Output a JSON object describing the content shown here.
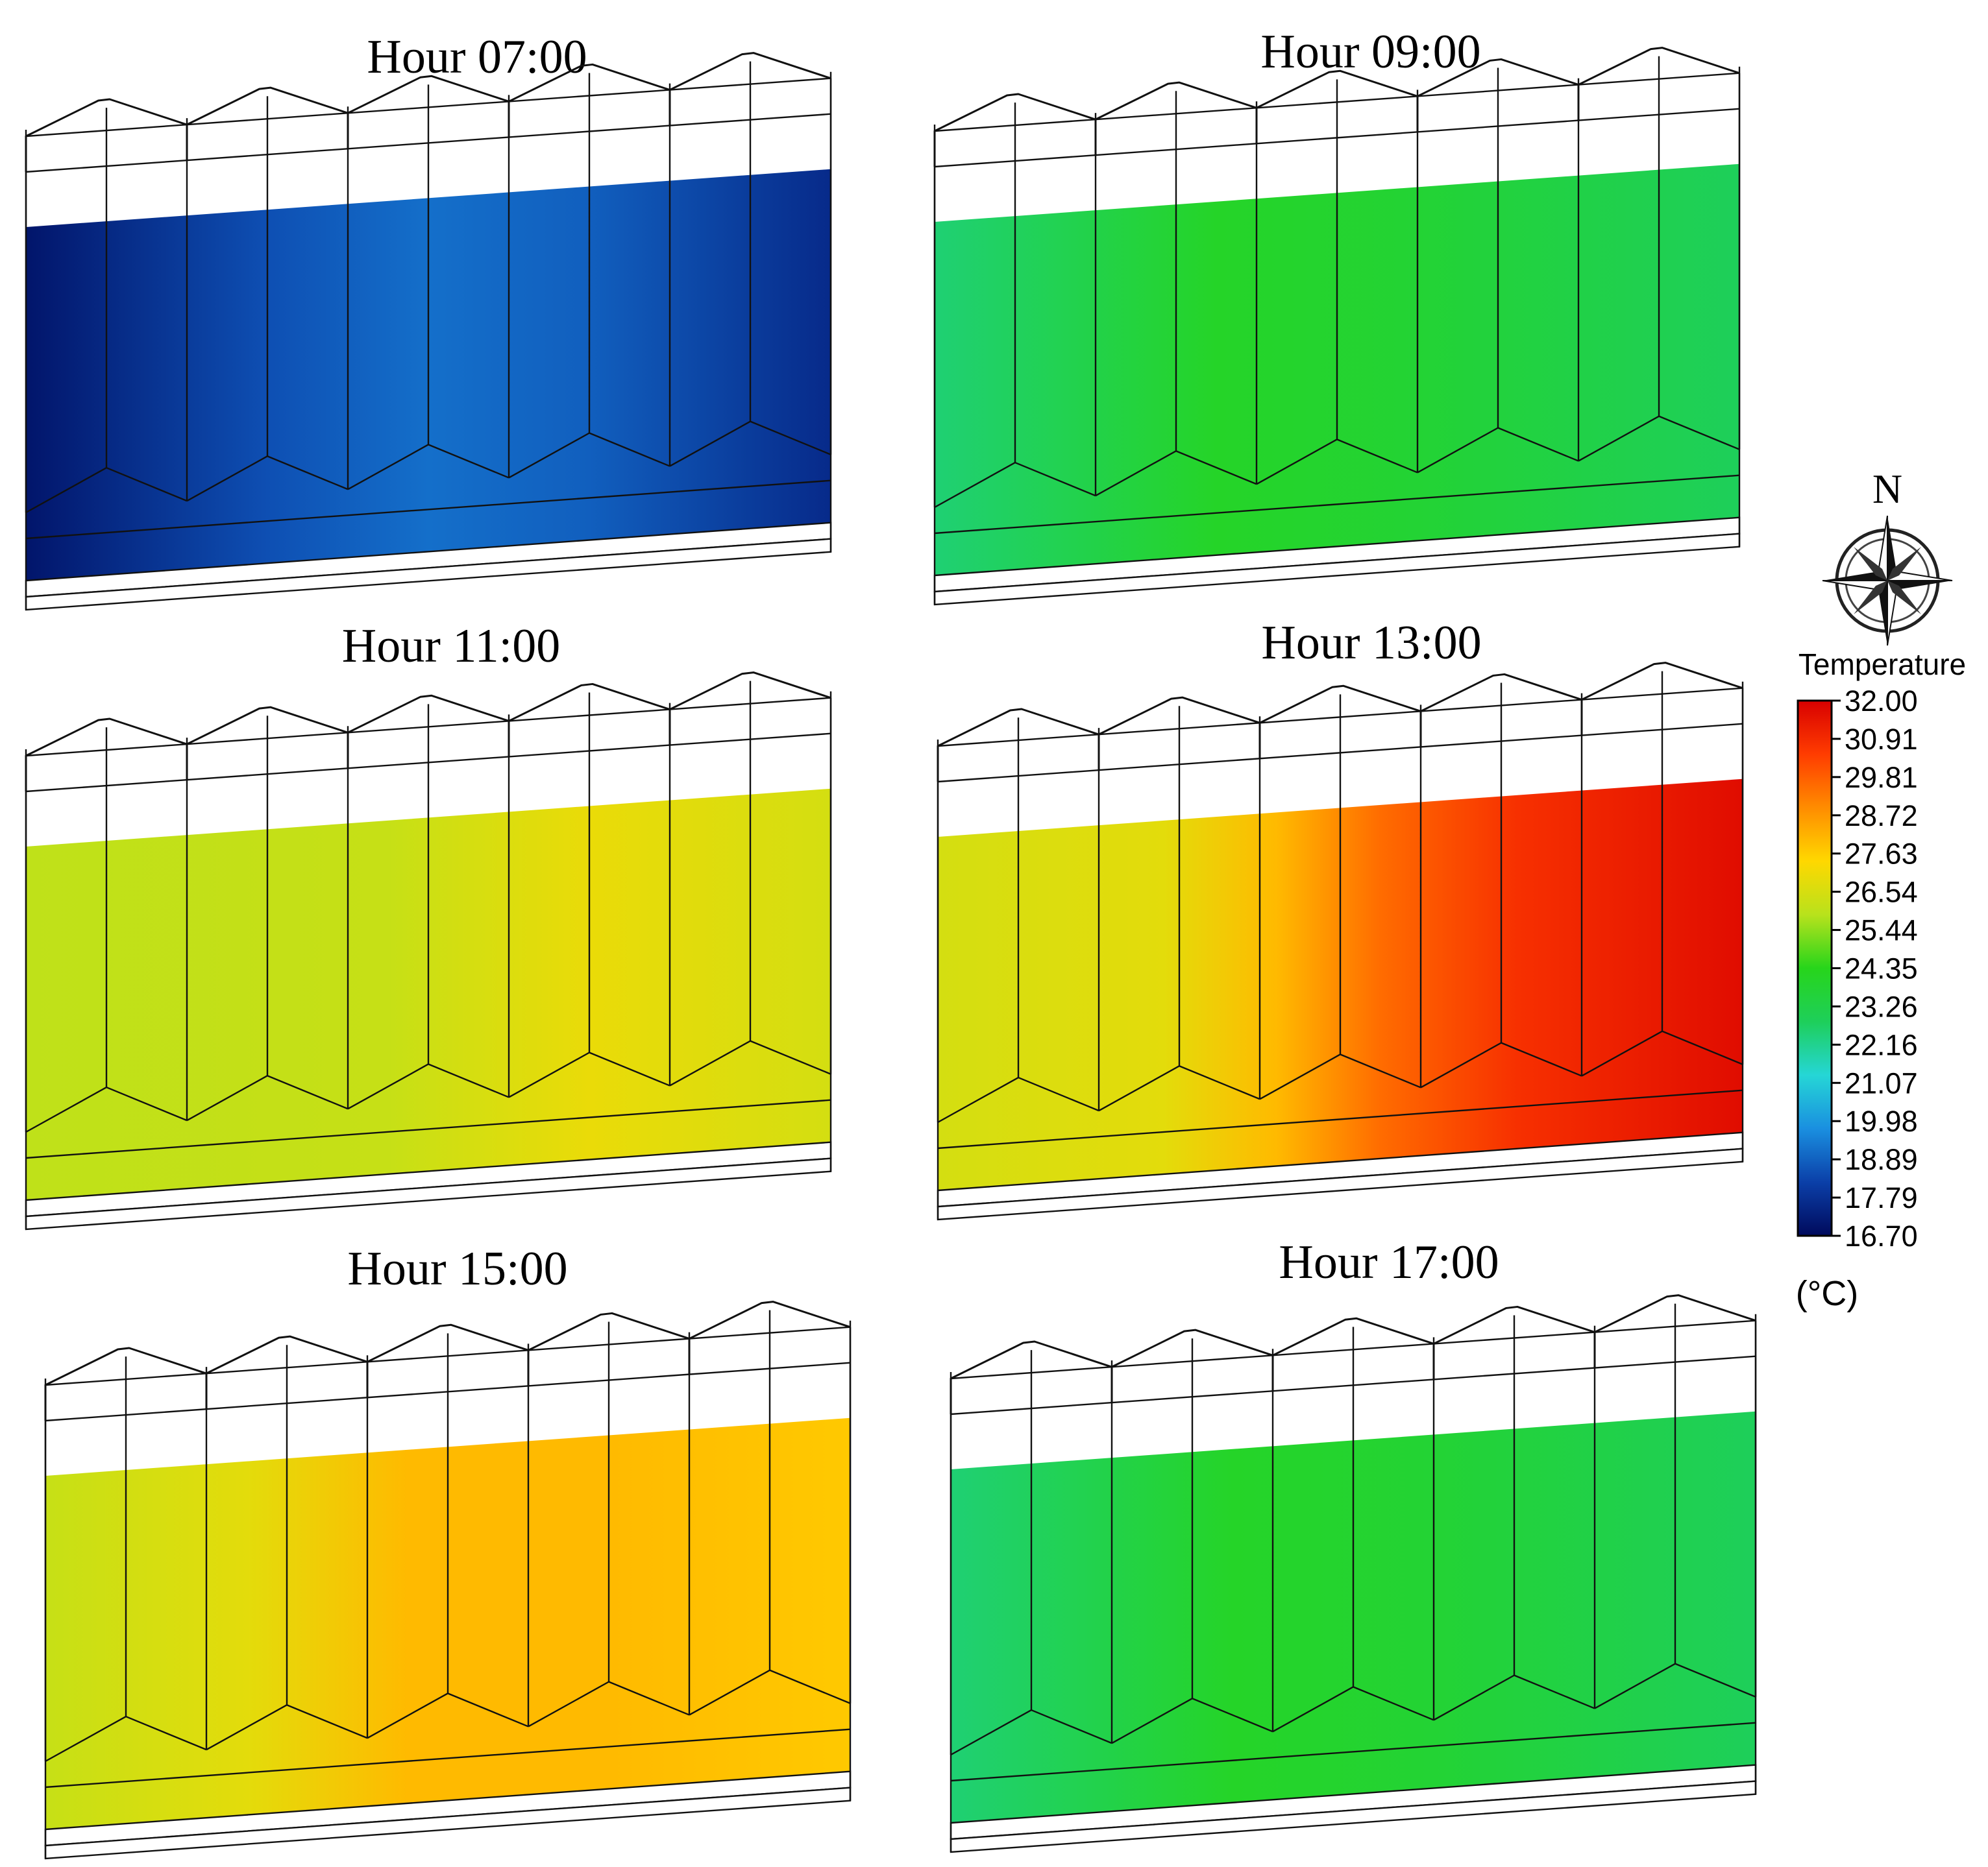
{
  "panels": [
    {
      "title": "Hour 07:00",
      "level": 0.04,
      "field": "cold"
    },
    {
      "title": "Hour 09:00",
      "level": 0.4,
      "field": "mild"
    },
    {
      "title": "Hour 11:00",
      "level": 0.63,
      "field": "warm_corner"
    },
    {
      "title": "Hour 13:00",
      "level": 0.88,
      "field": "hot_gradient"
    },
    {
      "title": "Hour 15:00",
      "level": 0.72,
      "field": "warm_center"
    },
    {
      "title": "Hour 17:00",
      "level": 0.4,
      "field": "mild_stripes"
    }
  ],
  "legend": {
    "title": "Temperature",
    "unit": "(°C)",
    "min": 16.7,
    "max": 32.0,
    "ticks": [
      "32.00",
      "30.91",
      "29.81",
      "28.72",
      "27.63",
      "26.54",
      "25.44",
      "24.35",
      "23.26",
      "22.16",
      "21.07",
      "19.98",
      "18.89",
      "17.79",
      "16.70"
    ],
    "colors": [
      "#000a5c",
      "#0b3fa8",
      "#1a8fe0",
      "#25d6d6",
      "#1ecf5a",
      "#27d51b",
      "#b8e21c",
      "#ffd800",
      "#ff8c00",
      "#ff3c00",
      "#d80000"
    ]
  },
  "compass": {
    "label": "N",
    "icon": "compass-rose-icon"
  }
}
